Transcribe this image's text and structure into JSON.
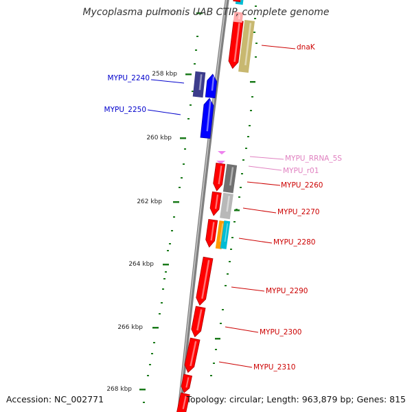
{
  "title": "Mycoplasma pulmonis UAB CTIP, complete genome",
  "footer": {
    "accession": "Accession: NC_002771",
    "summary": "Topology: circular; Length: 963,879 bp; Genes: 815"
  },
  "colors": {
    "forward_cds": "#ff0000",
    "reverse_cds": "#0000ff",
    "rrna": "#ee82ee",
    "backbone": "#808080",
    "ticks": "#1a7a1a"
  },
  "scale": {
    "labels": [
      {
        "text": "256 kbp",
        "kbp": 256
      },
      {
        "text": "258 kbp",
        "kbp": 258
      },
      {
        "text": "260 kbp",
        "kbp": 260
      },
      {
        "text": "262 kbp",
        "kbp": 262
      },
      {
        "text": "264 kbp",
        "kbp": 264
      },
      {
        "text": "266 kbp",
        "kbp": 266
      },
      {
        "text": "268 kbp",
        "kbp": 268
      }
    ]
  },
  "genes": [
    {
      "label": "dnaK",
      "strand": "forward",
      "color": "#ff0000",
      "labelColor": "#cc0000"
    },
    {
      "label": "MYPU_2240",
      "strand": "reverse",
      "color": "#0000ff",
      "labelColor": "#0000cc"
    },
    {
      "label": "MYPU_2250",
      "strand": "reverse",
      "color": "#0000ff",
      "labelColor": "#0000cc"
    },
    {
      "label": "MYPU_RRNA_5S",
      "strand": "forward",
      "color": "#ee82ee",
      "labelColor": "#e080c0"
    },
    {
      "label": "MYPU_r01",
      "strand": "forward",
      "color": "#ee82ee",
      "labelColor": "#e080c0"
    },
    {
      "label": "MYPU_2260",
      "strand": "forward",
      "color": "#ff0000",
      "labelColor": "#cc0000"
    },
    {
      "label": "MYPU_2270",
      "strand": "forward",
      "color": "#ff0000",
      "labelColor": "#cc0000"
    },
    {
      "label": "MYPU_2280",
      "strand": "forward",
      "color": "#ff0000",
      "labelColor": "#cc0000"
    },
    {
      "label": "MYPU_2290",
      "strand": "forward",
      "color": "#ff0000",
      "labelColor": "#cc0000"
    },
    {
      "label": "MYPU_2300",
      "strand": "forward",
      "color": "#ff0000",
      "labelColor": "#cc0000"
    },
    {
      "label": "MYPU_2310",
      "strand": "forward",
      "color": "#ff0000",
      "labelColor": "#cc0000"
    }
  ]
}
